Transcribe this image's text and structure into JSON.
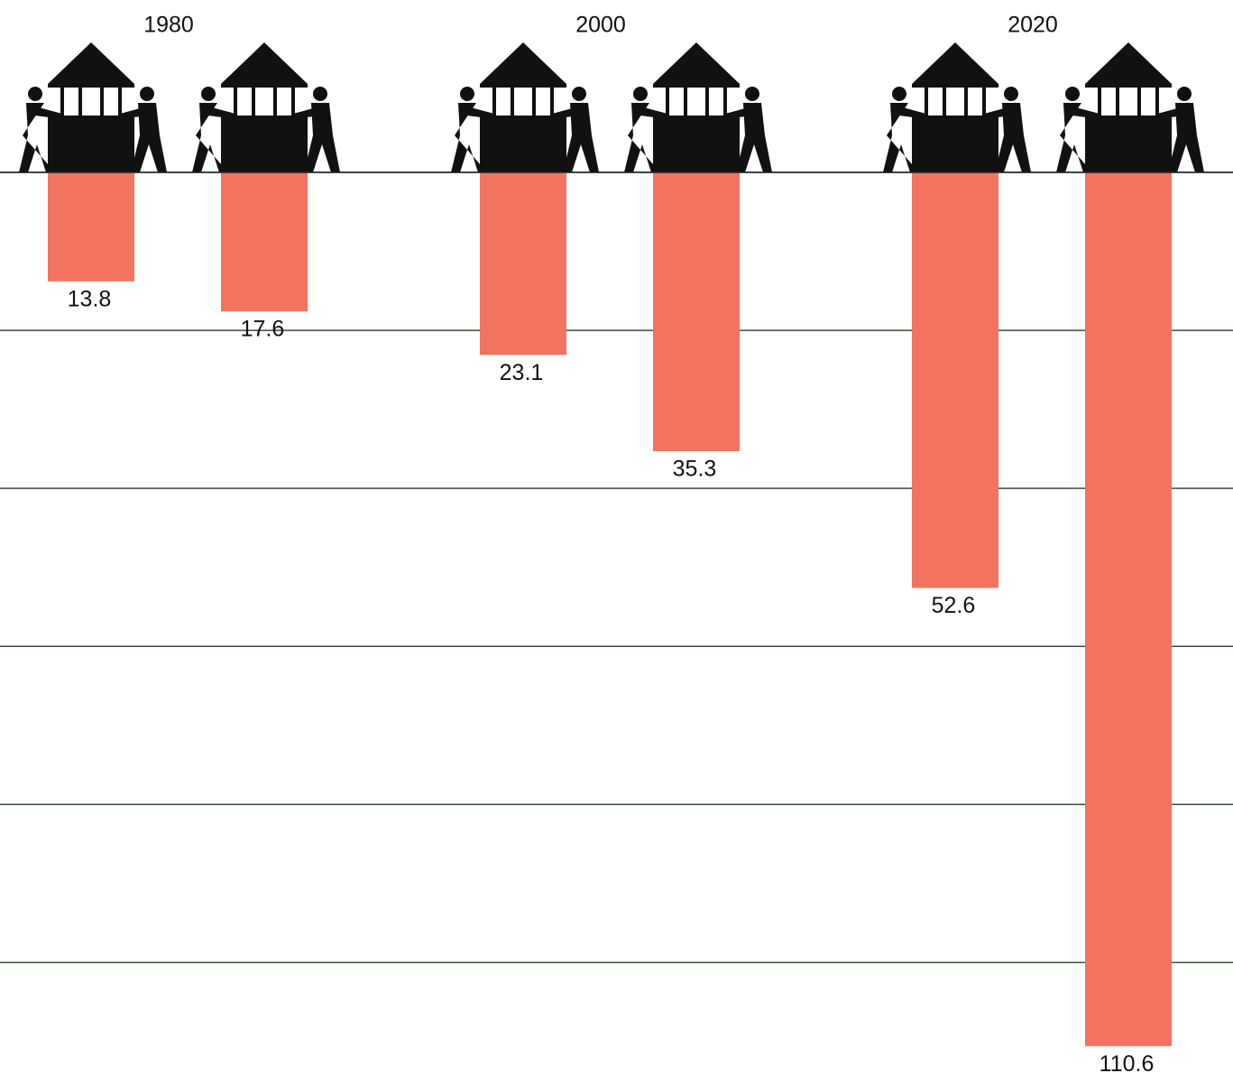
{
  "chart_data": {
    "type": "bar",
    "categories": [
      "1980",
      "2000",
      "2020"
    ],
    "series": [
      {
        "color": "#f2735f",
        "values": [
          13.8,
          23.1,
          52.6
        ]
      },
      {
        "color": "#f2735f",
        "values": [
          17.6,
          35.3,
          110.6
        ]
      }
    ],
    "ylim": [
      0,
      114
    ],
    "yticks": [
      0,
      20,
      40,
      60,
      80,
      100
    ],
    "grid": true
  }
}
